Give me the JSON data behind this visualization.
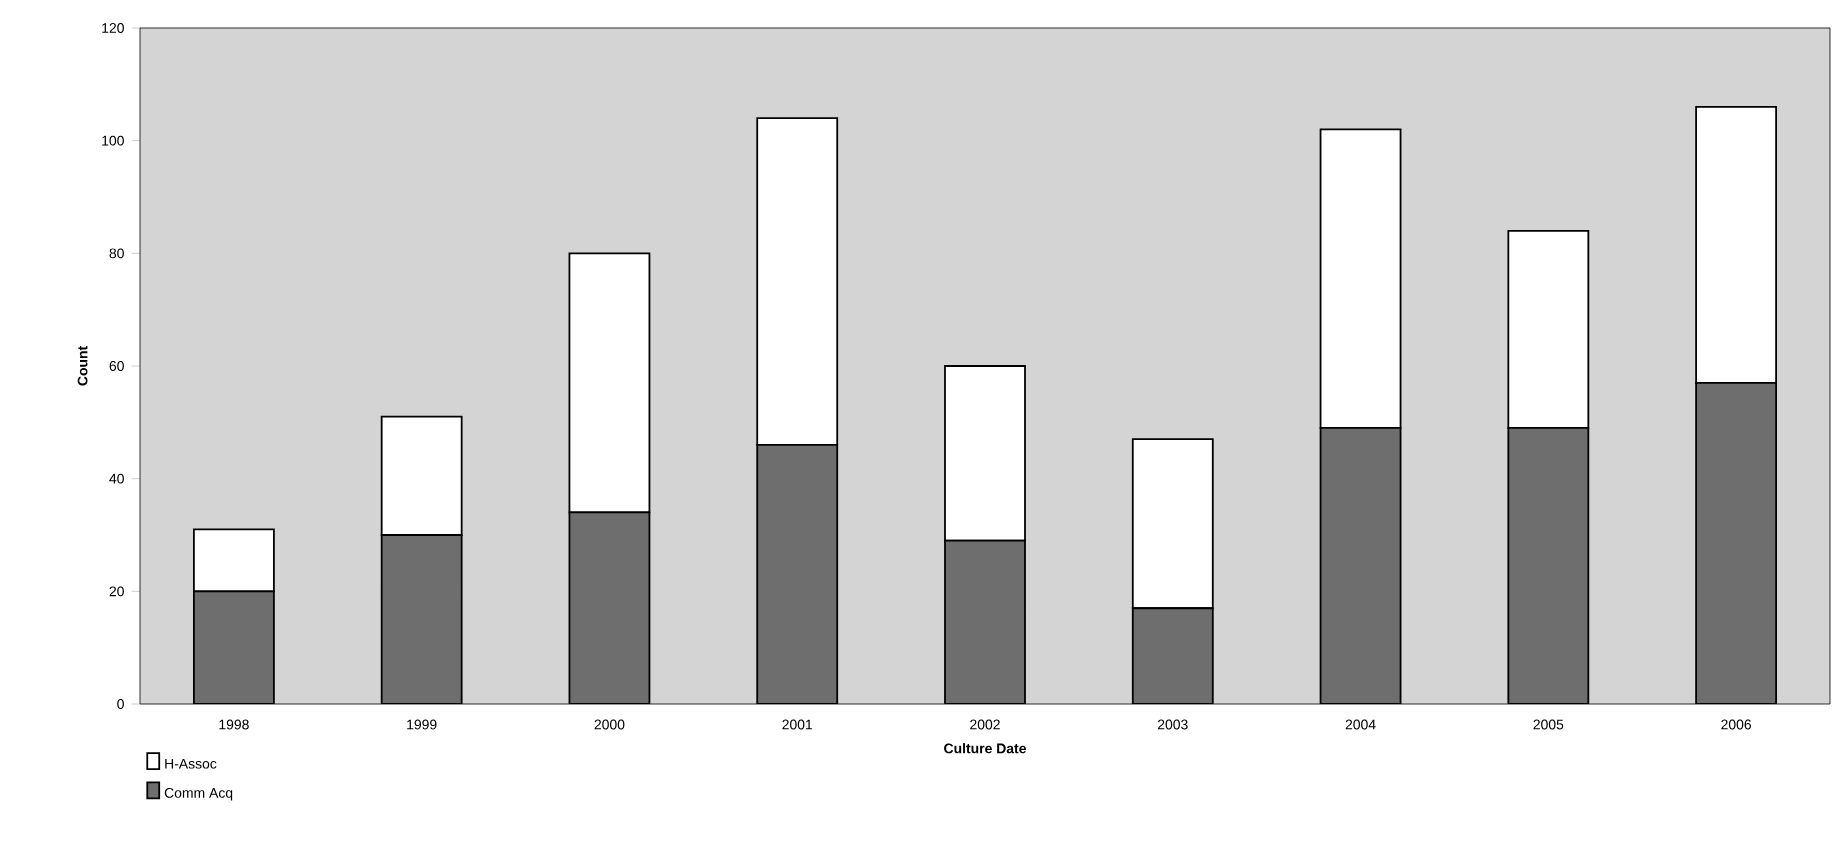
{
  "chart_data": {
    "type": "bar",
    "stacked": true,
    "xlabel": "Culture Date",
    "ylabel": "Count",
    "categories": [
      "1998",
      "1999",
      "2000",
      "2001",
      "2002",
      "2003",
      "2004",
      "2005",
      "2006"
    ],
    "series": [
      {
        "name": "Comm Acq",
        "color": "#6e6e6e",
        "values": [
          20,
          30,
          34,
          46,
          29,
          17,
          49,
          49,
          57
        ]
      },
      {
        "name": "H-Assoc",
        "color": "#ffffff",
        "values": [
          11,
          21,
          46,
          58,
          31,
          30,
          53,
          35,
          49
        ]
      }
    ],
    "ylim": [
      0,
      120
    ],
    "yticks": [
      0,
      20,
      40,
      60,
      80,
      100,
      120
    ],
    "grid": false,
    "legend": "bottom left"
  }
}
